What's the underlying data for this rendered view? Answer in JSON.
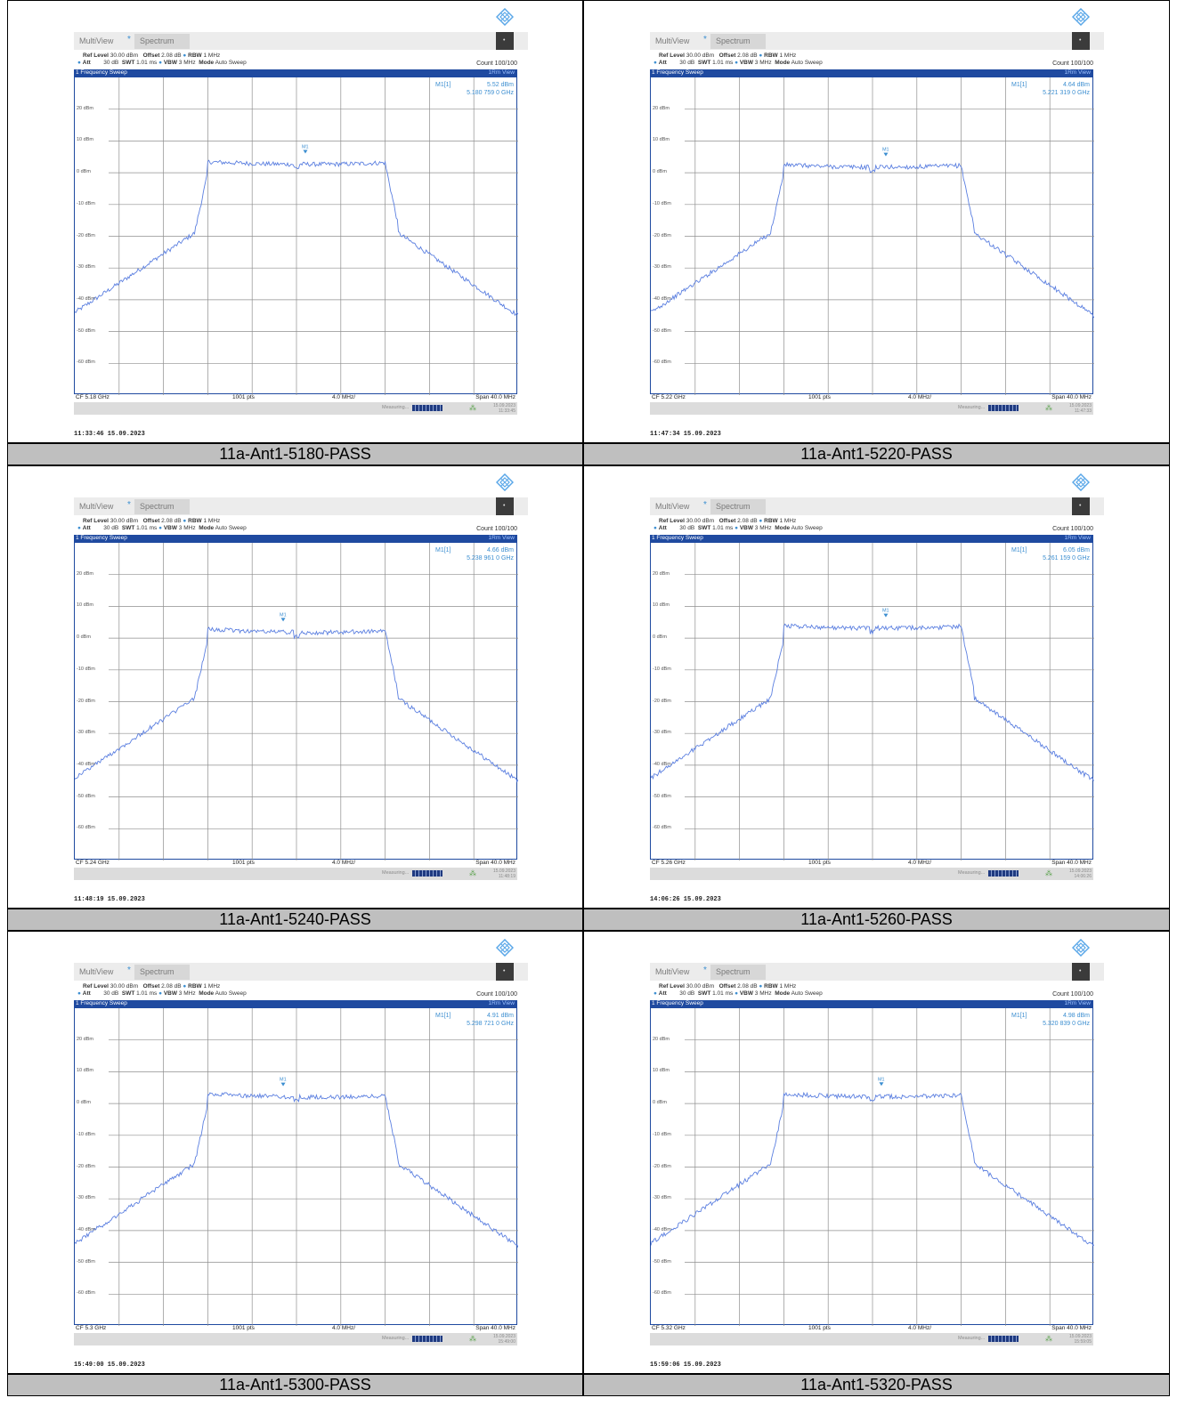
{
  "common": {
    "multiview": "MultiView",
    "spectrum_tab": "Spectrum",
    "ref_level_label": "Ref Level",
    "ref_level": "30.00 dBm",
    "offset_label": "Offset",
    "offset": "2.08 dB",
    "rbw_label": "RBW",
    "rbw": "1 MHz",
    "att_label": "Att",
    "att": "30 dB",
    "swt_label": "SWT",
    "swt": "1.01 ms",
    "vbw_label": "VBW",
    "vbw": "3 MHz",
    "mode_label": "Mode",
    "mode": "Auto Sweep",
    "count": "Count 100/100",
    "sweep_label": "1 Frequency Sweep",
    "view_label": "1Rm View",
    "marker_name": "M1[1]",
    "marker_tag": "M1",
    "pts": "1001 pts",
    "div": "4.0 MHz/",
    "span": "Span 40.0 MHz",
    "measuring": "Measuring...",
    "y_ticks": [
      "20 dBm",
      "10 dBm",
      "0 dBm",
      "-10 dBm",
      "-20 dBm",
      "-30 dBm",
      "-40 dBm",
      "-50 dBm",
      "-60 dBm"
    ],
    "colors": {
      "trace": "#5b7fe0",
      "header": "#1f4aa0",
      "marker": "#3d8fd1",
      "caption_bg": "#bfbfbf"
    }
  },
  "panels": [
    {
      "caption": "11a-Ant1-5180-PASS",
      "marker_value": "5.52 dBm",
      "marker_freq": "5.180 759 0 GHz",
      "cf": "CF 5.18 GHz",
      "status_date": "15.09.2023",
      "status_time": "11:33:45",
      "stamp": "11:33:46  15.09.2023",
      "peak_level": 5.5,
      "marker_pos": 0.52
    },
    {
      "caption": "11a-Ant1-5220-PASS",
      "marker_value": "4.64 dBm",
      "marker_freq": "5.221 319 0 GHz",
      "cf": "CF 5.22 GHz",
      "status_date": "15.09.2023",
      "status_time": "11:47:33",
      "stamp": "11:47:34  15.09.2023",
      "peak_level": 4.6,
      "marker_pos": 0.53
    },
    {
      "caption": "11a-Ant1-5240-PASS",
      "marker_value": "4.66 dBm",
      "marker_freq": "5.238 961 0 GHz",
      "cf": "CF 5.24 GHz",
      "status_date": "15.09.2023",
      "status_time": "11:48:19",
      "stamp": "11:48:19  15.09.2023",
      "peak_level": 4.7,
      "marker_pos": 0.47
    },
    {
      "caption": "11a-Ant1-5260-PASS",
      "marker_value": "6.05 dBm",
      "marker_freq": "5.261 159 0 GHz",
      "cf": "CF 5.26 GHz",
      "status_date": "15.09.2023",
      "status_time": "14:06:26",
      "stamp": "14:06:26  15.09.2023",
      "peak_level": 6.0,
      "marker_pos": 0.53
    },
    {
      "caption": "11a-Ant1-5300-PASS",
      "marker_value": "4.91 dBm",
      "marker_freq": "5.298 721 0 GHz",
      "cf": "CF 5.3 GHz",
      "status_date": "15.09.2023",
      "status_time": "15:49:00",
      "stamp": "15:49:00  15.09.2023",
      "peak_level": 4.9,
      "marker_pos": 0.47
    },
    {
      "caption": "11a-Ant1-5320-PASS",
      "marker_value": "4.98 dBm",
      "marker_freq": "5.320 839 0 GHz",
      "cf": "CF 5.32 GHz",
      "status_date": "15.09.2023",
      "status_time": "15:59:05",
      "stamp": "15:59:06  15.09.2023",
      "peak_level": 5.0,
      "marker_pos": 0.52
    }
  ]
}
